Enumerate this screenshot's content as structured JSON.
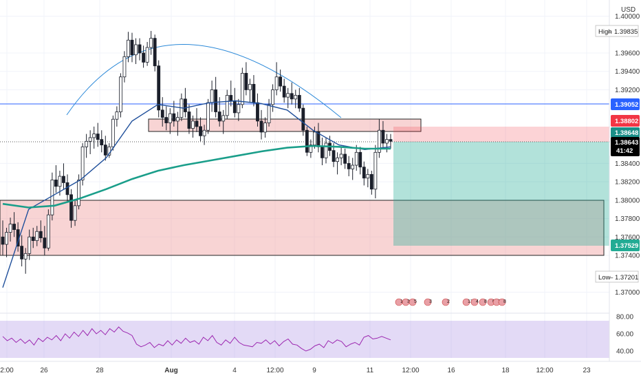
{
  "chart_data": {
    "type": "candlestick",
    "symbol_currency": "USD",
    "ylim": [
      1.369,
      1.401
    ],
    "y_ticks": [
      "1.40000",
      "1.39600",
      "1.39400",
      "1.39200",
      "1.38400",
      "1.38200",
      "1.38000",
      "1.37800",
      "1.37600",
      "1.37400",
      "1.37000"
    ],
    "x_ticks": [
      "2:00",
      "26",
      "28",
      "Aug",
      "4",
      "12:00",
      "9",
      "11",
      "12:00",
      "16",
      "18",
      "12:00",
      "23"
    ],
    "price_tags": {
      "high": {
        "label": "High",
        "value": "1.39835"
      },
      "low": {
        "label": "Low",
        "value": "1.37201"
      },
      "line_level": {
        "value": "1.39052",
        "color": "#2962ff"
      },
      "stop": {
        "value": "1.38802",
        "color": "#f23645"
      },
      "ma": {
        "value": "1.38648",
        "color": "#1a8f88"
      },
      "last": {
        "value": "1.38643",
        "countdown": "41:42",
        "color": "#000000"
      },
      "target": {
        "value": "1.37529",
        "color": "#22ab94"
      }
    },
    "candles": [
      [
        1.376,
        1.3778,
        1.374,
        1.3752
      ],
      [
        1.3752,
        1.377,
        1.3738,
        1.3765
      ],
      [
        1.3765,
        1.3781,
        1.3755,
        1.3774
      ],
      [
        1.3774,
        1.3787,
        1.376,
        1.3768
      ],
      [
        1.3768,
        1.3776,
        1.3744,
        1.375
      ],
      [
        1.375,
        1.3762,
        1.3728,
        1.3736
      ],
      [
        1.3736,
        1.3748,
        1.372,
        1.3742
      ],
      [
        1.3742,
        1.3768,
        1.3735,
        1.376
      ],
      [
        1.376,
        1.377,
        1.3748,
        1.3756
      ],
      [
        1.3756,
        1.3772,
        1.375,
        1.3766
      ],
      [
        1.3766,
        1.3778,
        1.3754,
        1.3759
      ],
      [
        1.3759,
        1.3772,
        1.374,
        1.3748
      ],
      [
        1.3748,
        1.379,
        1.3745,
        1.3784
      ],
      [
        1.3784,
        1.383,
        1.3778,
        1.3822
      ],
      [
        1.3822,
        1.3838,
        1.3808,
        1.3815
      ],
      [
        1.3815,
        1.3832,
        1.3805,
        1.3826
      ],
      [
        1.3826,
        1.384,
        1.3812,
        1.3819
      ],
      [
        1.3819,
        1.3828,
        1.3798,
        1.3806
      ],
      [
        1.3806,
        1.3812,
        1.377,
        1.3778
      ],
      [
        1.3778,
        1.38,
        1.3772,
        1.3794
      ],
      [
        1.3794,
        1.3828,
        1.379,
        1.3822
      ],
      [
        1.3822,
        1.3862,
        1.3816,
        1.3858
      ],
      [
        1.3858,
        1.3872,
        1.3846,
        1.3864
      ],
      [
        1.3864,
        1.3876,
        1.385,
        1.3868
      ],
      [
        1.3868,
        1.388,
        1.3856,
        1.3872
      ],
      [
        1.3872,
        1.3884,
        1.3858,
        1.3866
      ],
      [
        1.3866,
        1.3876,
        1.3852,
        1.386
      ],
      [
        1.386,
        1.387,
        1.3843,
        1.3849
      ],
      [
        1.3849,
        1.3862,
        1.3846,
        1.3858
      ],
      [
        1.3858,
        1.3892,
        1.3854,
        1.3888
      ],
      [
        1.3888,
        1.3902,
        1.388,
        1.3896
      ],
      [
        1.3896,
        1.3938,
        1.389,
        1.3934
      ],
      [
        1.3934,
        1.3962,
        1.3928,
        1.3956
      ],
      [
        1.3956,
        1.3983,
        1.395,
        1.3974
      ],
      [
        1.3974,
        1.3982,
        1.395,
        1.3958
      ],
      [
        1.3958,
        1.3976,
        1.3948,
        1.3969
      ],
      [
        1.3969,
        1.3976,
        1.3952,
        1.396
      ],
      [
        1.396,
        1.3968,
        1.3944,
        1.395
      ],
      [
        1.395,
        1.3972,
        1.3946,
        1.3966
      ],
      [
        1.3966,
        1.3984,
        1.3958,
        1.3976
      ],
      [
        1.3976,
        1.398,
        1.394,
        1.3946
      ],
      [
        1.3946,
        1.3952,
        1.389,
        1.3898
      ],
      [
        1.3898,
        1.3912,
        1.388,
        1.389
      ],
      [
        1.389,
        1.3902,
        1.3876,
        1.3884
      ],
      [
        1.3884,
        1.39,
        1.3872,
        1.3894
      ],
      [
        1.3894,
        1.3908,
        1.388,
        1.3886
      ],
      [
        1.3886,
        1.3896,
        1.387,
        1.389
      ],
      [
        1.389,
        1.3916,
        1.3886,
        1.391
      ],
      [
        1.391,
        1.3922,
        1.389,
        1.3896
      ],
      [
        1.3896,
        1.3904,
        1.3872,
        1.3878
      ],
      [
        1.3878,
        1.3892,
        1.3868,
        1.3886
      ],
      [
        1.3886,
        1.39,
        1.3874,
        1.388
      ],
      [
        1.388,
        1.389,
        1.3864,
        1.387
      ],
      [
        1.387,
        1.3882,
        1.386,
        1.3876
      ],
      [
        1.3876,
        1.391,
        1.3872,
        1.3906
      ],
      [
        1.3906,
        1.393,
        1.3896,
        1.392
      ],
      [
        1.392,
        1.3934,
        1.389,
        1.3896
      ],
      [
        1.3896,
        1.3912,
        1.388,
        1.3886
      ],
      [
        1.3886,
        1.3898,
        1.3872,
        1.3892
      ],
      [
        1.3892,
        1.392,
        1.3888,
        1.3914
      ],
      [
        1.3914,
        1.393,
        1.3902,
        1.3908
      ],
      [
        1.3908,
        1.3922,
        1.389,
        1.3895
      ],
      [
        1.3895,
        1.391,
        1.3886,
        1.3904
      ],
      [
        1.3904,
        1.3944,
        1.39,
        1.3938
      ],
      [
        1.3938,
        1.395,
        1.3914,
        1.392
      ],
      [
        1.392,
        1.3932,
        1.3906,
        1.3926
      ],
      [
        1.3926,
        1.3936,
        1.3902,
        1.3906
      ],
      [
        1.3906,
        1.3916,
        1.388,
        1.3886
      ],
      [
        1.3886,
        1.3898,
        1.3866,
        1.3874
      ],
      [
        1.3874,
        1.389,
        1.3868,
        1.3884
      ],
      [
        1.3884,
        1.391,
        1.388,
        1.3904
      ],
      [
        1.3904,
        1.3926,
        1.3896,
        1.392
      ],
      [
        1.392,
        1.395,
        1.3914,
        1.3934
      ],
      [
        1.3934,
        1.3942,
        1.3918,
        1.3924
      ],
      [
        1.3924,
        1.3932,
        1.3906,
        1.3912
      ],
      [
        1.3912,
        1.3922,
        1.39,
        1.3916
      ],
      [
        1.3916,
        1.3928,
        1.3904,
        1.391
      ],
      [
        1.391,
        1.392,
        1.39,
        1.3914
      ],
      [
        1.3914,
        1.3922,
        1.3896,
        1.39
      ],
      [
        1.39,
        1.3904,
        1.387,
        1.3876
      ],
      [
        1.3876,
        1.388,
        1.3848,
        1.3852
      ],
      [
        1.3852,
        1.3866,
        1.3846,
        1.386
      ],
      [
        1.386,
        1.388,
        1.3856,
        1.3874
      ],
      [
        1.3874,
        1.3884,
        1.3852,
        1.3858
      ],
      [
        1.3858,
        1.3868,
        1.3838,
        1.3846
      ],
      [
        1.3846,
        1.3868,
        1.384,
        1.3862
      ],
      [
        1.3862,
        1.387,
        1.3848,
        1.3854
      ],
      [
        1.3854,
        1.3862,
        1.3836,
        1.3842
      ],
      [
        1.3842,
        1.3852,
        1.3828,
        1.3846
      ],
      [
        1.3846,
        1.3858,
        1.3838,
        1.385
      ],
      [
        1.385,
        1.3856,
        1.3834,
        1.384
      ],
      [
        1.384,
        1.3848,
        1.3826,
        1.3834
      ],
      [
        1.3834,
        1.3846,
        1.3822,
        1.3838
      ],
      [
        1.3838,
        1.386,
        1.3832,
        1.3852
      ],
      [
        1.3852,
        1.3858,
        1.3828,
        1.3836
      ],
      [
        1.3836,
        1.3842,
        1.3816,
        1.3824
      ],
      [
        1.3824,
        1.3834,
        1.3814,
        1.3828
      ],
      [
        1.3828,
        1.3832,
        1.3806,
        1.3812
      ],
      [
        1.3812,
        1.386,
        1.3802,
        1.3852
      ],
      [
        1.3852,
        1.3888,
        1.3846,
        1.3876
      ],
      [
        1.3876,
        1.3886,
        1.3856,
        1.3862
      ],
      [
        1.3862,
        1.3872,
        1.3852,
        1.3866
      ],
      [
        1.3866,
        1.3872,
        1.3856,
        1.3864
      ]
    ],
    "ma_short": [
      1.3705,
      1.379,
      1.3806,
      1.3822,
      1.3846,
      1.3886,
      1.3904,
      1.39,
      1.3906,
      1.3908,
      1.3905,
      1.3898,
      1.3876,
      1.386,
      1.3855,
      1.3858
    ],
    "ma_long": [
      1.3796,
      1.3792,
      1.3794,
      1.3802,
      1.3812,
      1.3823,
      1.3832,
      1.3838,
      1.3843,
      1.3848,
      1.3853,
      1.3857,
      1.3859,
      1.3858,
      1.3856,
      1.3856
    ],
    "rsi": {
      "ylim": [
        32,
        84
      ],
      "ticks": [
        "80.00",
        "60.00",
        "40.00"
      ],
      "values": [
        57,
        52,
        55,
        50,
        54,
        49,
        53,
        47,
        55,
        51,
        56,
        53,
        58,
        52,
        60,
        55,
        62,
        57,
        64,
        58,
        66,
        60,
        64,
        59,
        66,
        62,
        68,
        63,
        61,
        58,
        48,
        45,
        47,
        50,
        44,
        48,
        46,
        52,
        47,
        53,
        49,
        55,
        50,
        52,
        48,
        56,
        52,
        58,
        50,
        47,
        53,
        49,
        56,
        50,
        47,
        46,
        45,
        50,
        49,
        53,
        48,
        52,
        46,
        51,
        54,
        48,
        47,
        43,
        40,
        42,
        46,
        48,
        44,
        52,
        49,
        53,
        51,
        45,
        48,
        50,
        47,
        56,
        58,
        54,
        55,
        57,
        55,
        53
      ]
    },
    "event_groups": [
      "17",
      "34",
      "5",
      "3",
      "2",
      "13",
      "4",
      "8",
      "6",
      "1",
      "8"
    ]
  }
}
